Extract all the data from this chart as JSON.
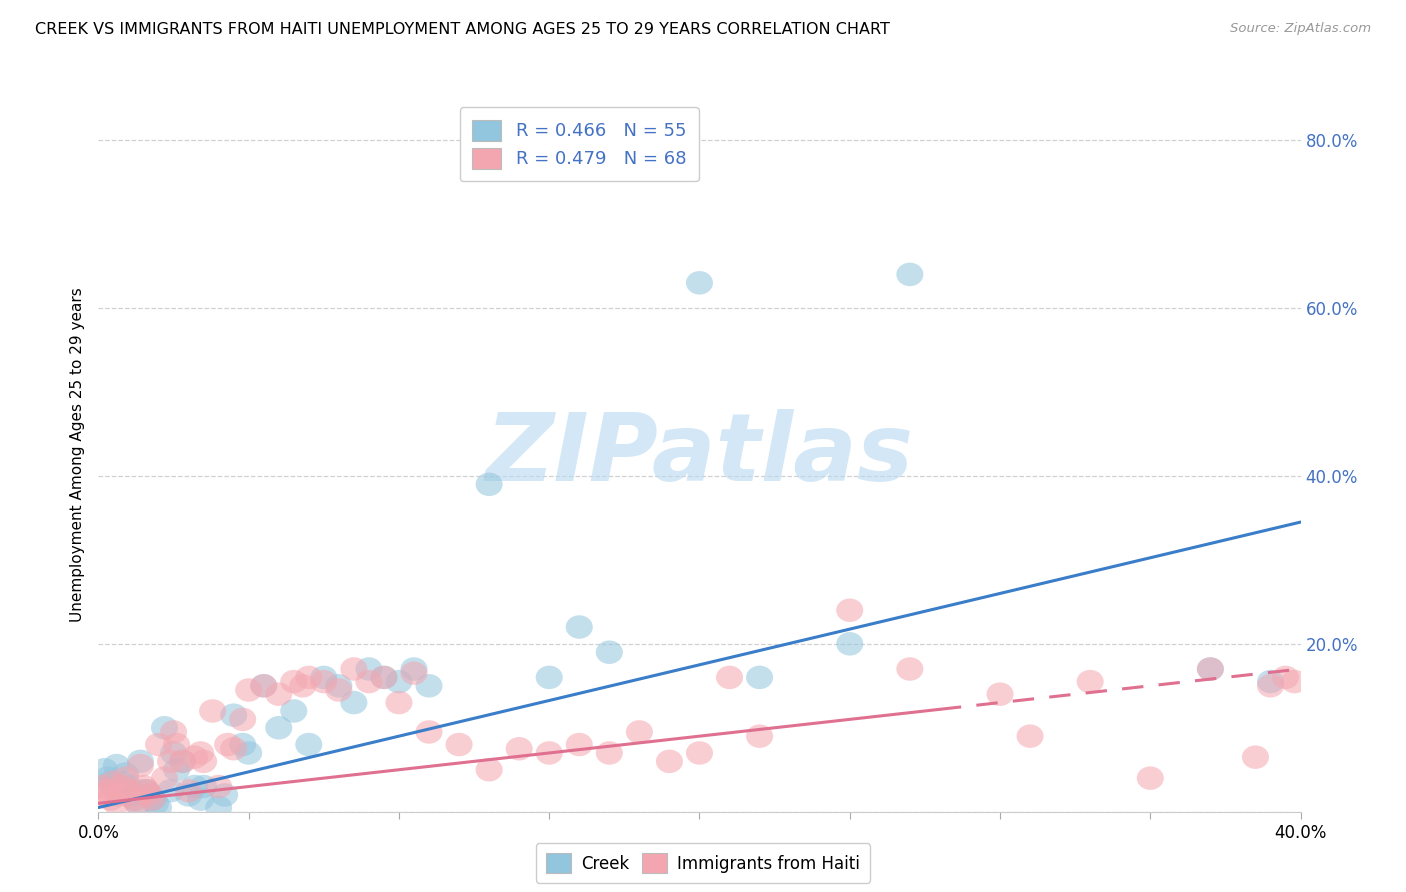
{
  "title": "CREEK VS IMMIGRANTS FROM HAITI UNEMPLOYMENT AMONG AGES 25 TO 29 YEARS CORRELATION CHART",
  "source": "Source: ZipAtlas.com",
  "ylabel_label": "Unemployment Among Ages 25 to 29 years",
  "x_min": 0.0,
  "x_max": 0.4,
  "y_min": 0.0,
  "y_max": 0.85,
  "creek_color": "#92c5de",
  "haiti_color": "#f4a6b0",
  "creek_line_color": "#3a7dc9",
  "haiti_line_color": "#e07090",
  "creek_R": "0.466",
  "creek_N": "55",
  "haiti_R": "0.479",
  "haiti_N": "68",
  "background_color": "#ffffff",
  "grid_color": "#cccccc",
  "creek_line_x0": 0.0,
  "creek_line_y0": 0.005,
  "creek_line_x1": 0.4,
  "creek_line_y1": 0.345,
  "haiti_line_x0": 0.0,
  "haiti_line_y0": 0.01,
  "haiti_line_x1": 0.4,
  "haiti_line_y1": 0.17,
  "creek_x": [
    0.002,
    0.003,
    0.004,
    0.005,
    0.006,
    0.007,
    0.008,
    0.009,
    0.01,
    0.011,
    0.012,
    0.013,
    0.014,
    0.015,
    0.016,
    0.017,
    0.018,
    0.019,
    0.02,
    0.022,
    0.024,
    0.025,
    0.026,
    0.028,
    0.03,
    0.032,
    0.034,
    0.035,
    0.04,
    0.042,
    0.045,
    0.048,
    0.05,
    0.055,
    0.06,
    0.065,
    0.07,
    0.075,
    0.08,
    0.085,
    0.09,
    0.095,
    0.1,
    0.105,
    0.11,
    0.13,
    0.15,
    0.16,
    0.17,
    0.2,
    0.22,
    0.25,
    0.27,
    0.37,
    0.39
  ],
  "creek_y": [
    0.05,
    0.04,
    0.035,
    0.03,
    0.055,
    0.025,
    0.035,
    0.045,
    0.03,
    0.02,
    0.015,
    0.01,
    0.06,
    0.025,
    0.025,
    0.02,
    0.015,
    0.01,
    0.005,
    0.1,
    0.025,
    0.07,
    0.05,
    0.06,
    0.02,
    0.03,
    0.015,
    0.03,
    0.005,
    0.02,
    0.115,
    0.08,
    0.07,
    0.15,
    0.1,
    0.12,
    0.08,
    0.16,
    0.15,
    0.13,
    0.17,
    0.16,
    0.155,
    0.17,
    0.15,
    0.39,
    0.16,
    0.22,
    0.19,
    0.63,
    0.16,
    0.2,
    0.64,
    0.17,
    0.155
  ],
  "haiti_x": [
    0.001,
    0.002,
    0.003,
    0.004,
    0.005,
    0.006,
    0.007,
    0.008,
    0.009,
    0.01,
    0.012,
    0.013,
    0.014,
    0.015,
    0.016,
    0.017,
    0.018,
    0.02,
    0.022,
    0.024,
    0.025,
    0.026,
    0.028,
    0.03,
    0.032,
    0.034,
    0.035,
    0.038,
    0.04,
    0.043,
    0.045,
    0.048,
    0.05,
    0.055,
    0.06,
    0.065,
    0.068,
    0.07,
    0.075,
    0.08,
    0.085,
    0.09,
    0.095,
    0.1,
    0.105,
    0.11,
    0.12,
    0.13,
    0.14,
    0.15,
    0.16,
    0.17,
    0.18,
    0.19,
    0.2,
    0.21,
    0.22,
    0.25,
    0.27,
    0.3,
    0.31,
    0.33,
    0.35,
    0.37,
    0.385,
    0.39,
    0.395,
    0.398
  ],
  "haiti_y": [
    0.03,
    0.02,
    0.025,
    0.015,
    0.035,
    0.01,
    0.02,
    0.03,
    0.04,
    0.025,
    0.015,
    0.01,
    0.055,
    0.03,
    0.025,
    0.02,
    0.015,
    0.08,
    0.04,
    0.06,
    0.095,
    0.08,
    0.06,
    0.025,
    0.065,
    0.07,
    0.06,
    0.12,
    0.03,
    0.08,
    0.075,
    0.11,
    0.145,
    0.15,
    0.14,
    0.155,
    0.15,
    0.16,
    0.155,
    0.145,
    0.17,
    0.155,
    0.16,
    0.13,
    0.165,
    0.095,
    0.08,
    0.05,
    0.075,
    0.07,
    0.08,
    0.07,
    0.095,
    0.06,
    0.07,
    0.16,
    0.09,
    0.24,
    0.17,
    0.14,
    0.09,
    0.155,
    0.04,
    0.17,
    0.065,
    0.15,
    0.16,
    0.155
  ]
}
